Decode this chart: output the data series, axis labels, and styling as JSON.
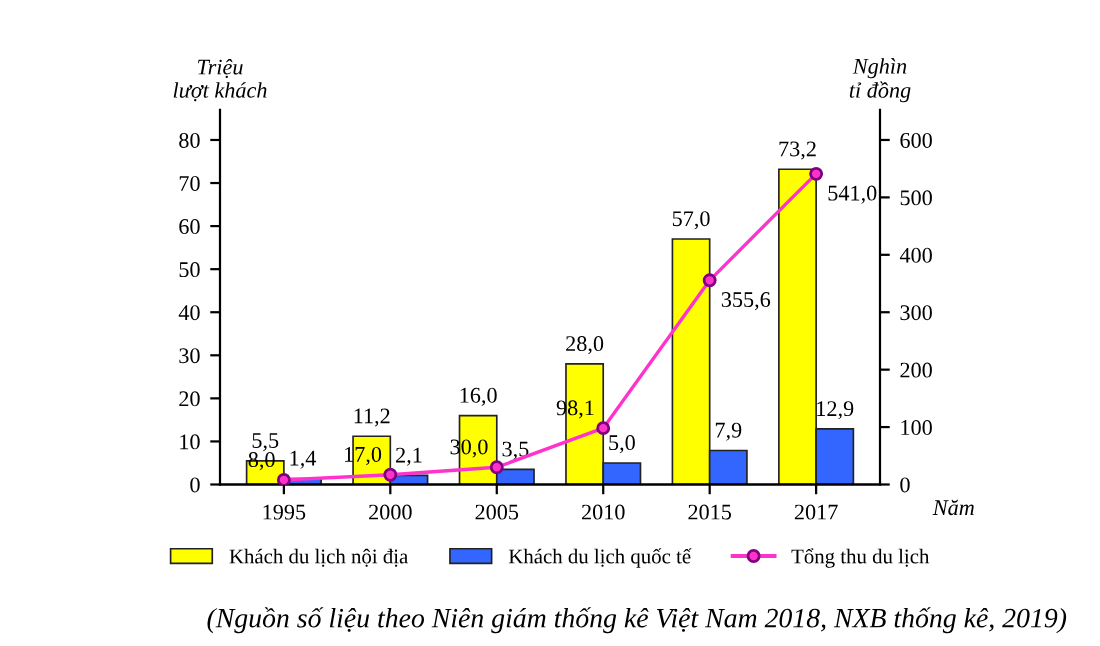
{
  "chart_data": {
    "type": "bar",
    "categories": [
      "1995",
      "2000",
      "2005",
      "2010",
      "2015",
      "2017"
    ],
    "series": [
      {
        "name": "Khách du lịch nội địa",
        "color": "#ffff00",
        "values": [
          5.5,
          11.2,
          16.0,
          28.0,
          57.0,
          73.2
        ],
        "value_labels": [
          "5,5",
          "11,2",
          "16,0",
          "28,0",
          "57,0",
          "73,2"
        ]
      },
      {
        "name": "Khách du lịch quốc tế",
        "color": "#3366ff",
        "values": [
          1.4,
          2.1,
          3.5,
          5.0,
          7.9,
          12.9
        ],
        "value_labels": [
          "1,4",
          "2,1",
          "3,5",
          "5,0",
          "7,9",
          "12,9"
        ]
      },
      {
        "name": "Tổng thu du lịch",
        "type": "line",
        "axis": "y2",
        "color": "#ff33cc",
        "marker": "circle",
        "values": [
          8.0,
          17.0,
          30.0,
          98.1,
          355.6,
          541.0
        ],
        "value_labels": [
          "8,0",
          "17,0",
          "30,0",
          "98,1",
          "355,6",
          "541,0"
        ]
      }
    ],
    "ylabel": "Triệu\nlượt khách",
    "y2label": "Nghìn\ntỉ đồng",
    "xlabel": "Năm",
    "ylim": [
      0,
      87
    ],
    "yticks": [
      0,
      10,
      20,
      30,
      40,
      50,
      60,
      70,
      80
    ],
    "y2lim": [
      0,
      652.5
    ],
    "y2ticks": [
      0,
      100,
      200,
      300,
      400,
      500,
      600
    ],
    "grid": false,
    "legend": "bottom",
    "annotations": [
      "(Nguồn số liệu theo Niên giám thống kê Việt Nam 2018, NXB thống kê, 2019)"
    ]
  }
}
